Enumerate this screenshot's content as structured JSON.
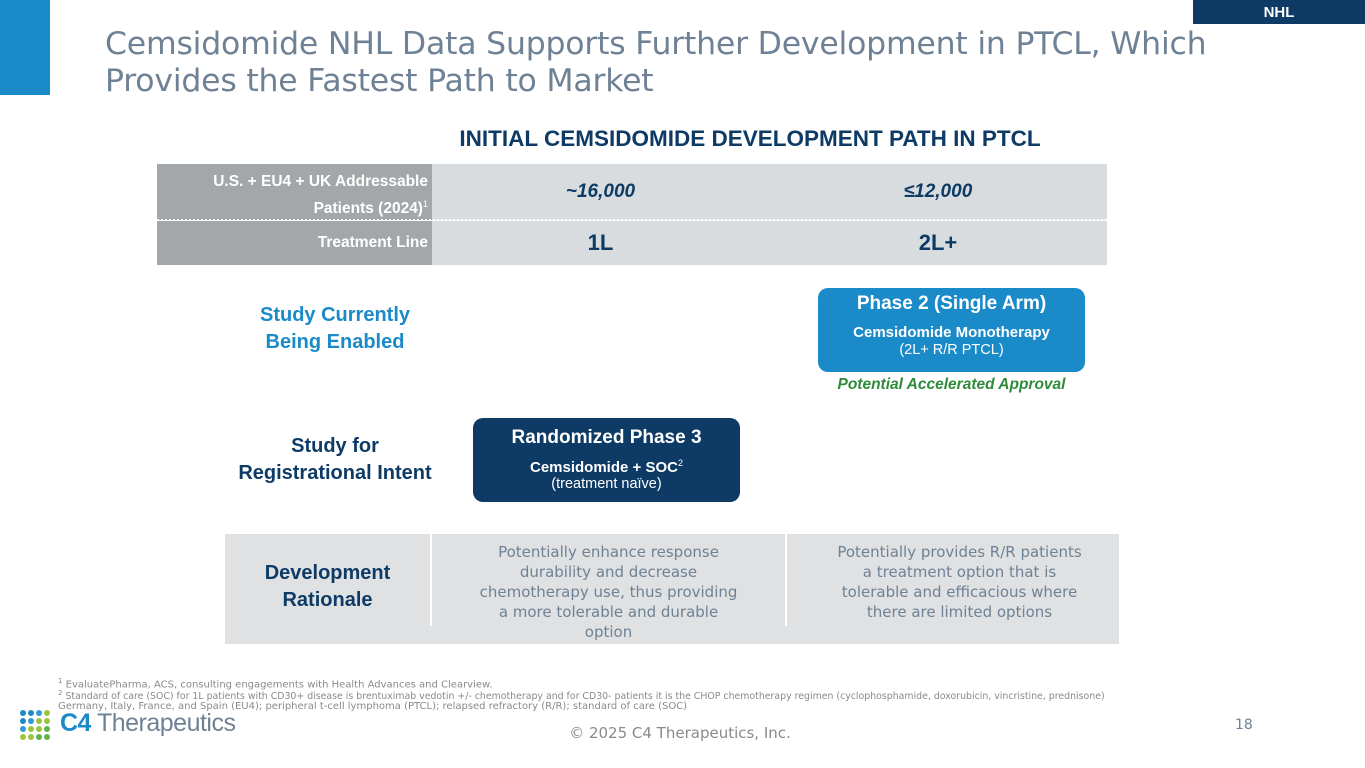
{
  "tag": "NHL",
  "title_line1": "Cemsidomide NHL Data Supports Further Development in PTCL, Which",
  "title_line2": "Provides the Fastest Path to Market",
  "subheading": "INITIAL CEMSIDOMIDE DEVELOPMENT PATH IN PTCL",
  "table": {
    "row1_label_line1": "U.S. + EU4 + UK Addressable",
    "row1_label_line2": "Patients (2024)",
    "row1_label_sup": "1",
    "row1_col1": "~16,000",
    "row1_col2": "≤12,000",
    "row2_label": "Treatment Line",
    "row2_col1": "1L",
    "row2_col2": "2L+"
  },
  "study1": {
    "label_line1": "Study Currently",
    "label_line2": "Being Enabled"
  },
  "phase2": {
    "heading": "Phase 2 (Single Arm)",
    "sub": "Cemsidomide Monotherapy",
    "note": "(2L+ R/R PTCL)",
    "caption": "Potential Accelerated Approval"
  },
  "study2": {
    "label_line1": "Study for",
    "label_line2": "Registrational Intent"
  },
  "phase3": {
    "heading": "Randomized Phase 3",
    "sub": "Cemsidomide + SOC",
    "sub_sup": "2",
    "note": "(treatment naïve)"
  },
  "rationale": {
    "label_line1": "Development",
    "label_line2": "Rationale",
    "text1": [
      "Potentially enhance response",
      "durability and decrease",
      "chemotherapy use, thus providing",
      "a more tolerable and durable",
      "option"
    ],
    "text2": [
      "Potentially provides R/R patients",
      "a treatment option that is",
      "tolerable and efficacious where",
      "there are limited options"
    ]
  },
  "footnotes": {
    "f1_num": "1",
    "f1": " EvaluatePharma, ACS, consulting engagements with Health Advances and Clearview.",
    "f2_num": "2",
    "f2": " Standard of care (SOC) for 1L patients with CD30+ disease is brentuximab vedotin +/- chemotherapy and for CD30- patients it is the CHOP chemotherapy regimen (cyclophosphamide, doxorubicin, vincristine, prednisone)",
    "f3": "Germany, Italy, France, and Spain (EU4); peripheral t-cell lymphoma (PTCL); relapsed refractory (R/R); standard of care (SOC)"
  },
  "logo": {
    "part1": "C4",
    "part2": " Therapeutics"
  },
  "copyright": "© 2025 C4 Therapeutics, Inc.",
  "page_number": "18",
  "colors": {
    "navy": "#0d3b66",
    "blue": "#1b8ac9",
    "green": "#2e8b3a",
    "slate": "#6f8295"
  }
}
